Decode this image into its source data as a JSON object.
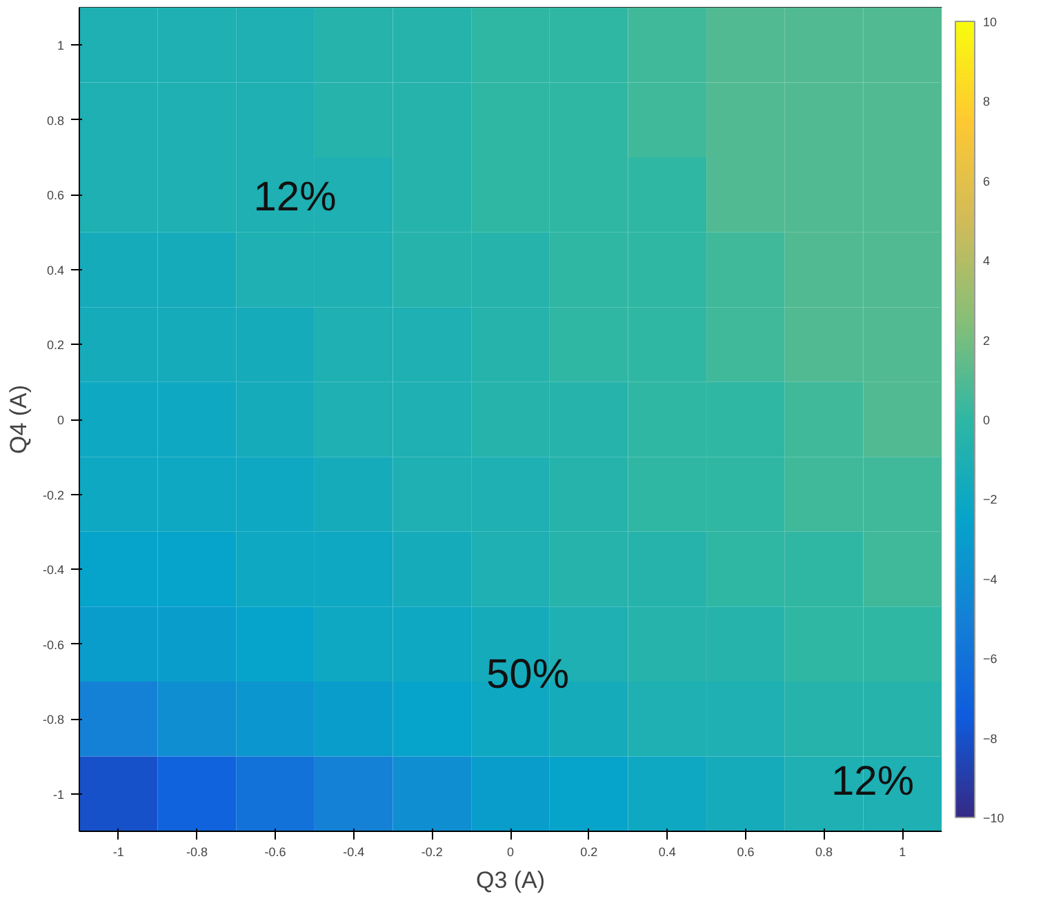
{
  "chart_data": {
    "type": "heatmap",
    "xlabel": "Q3 (A)",
    "ylabel": "Q4 (A)",
    "categories": [
      "-1",
      "-0.8",
      "-0.6",
      "-0.4",
      "-0.2",
      "0",
      "0.2",
      "0.4",
      "0.6",
      "0.8",
      "1"
    ],
    "y_categories": [
      "1",
      "0.8",
      "0.6",
      "0.4",
      "0.2",
      "0",
      "-0.2",
      "-0.4",
      "-0.6",
      "-0.8",
      "-1"
    ],
    "clim": [
      -10,
      10
    ],
    "cticks": [
      -10,
      -8,
      -6,
      -4,
      -2,
      0,
      2,
      4,
      6,
      8,
      10
    ],
    "cells": [
      [
        -1,
        -1,
        -1,
        -0.5,
        -0.5,
        0,
        0,
        0.5,
        1,
        1,
        1
      ],
      [
        -1,
        -1,
        -1,
        -0.5,
        -0.5,
        0,
        0,
        0.5,
        1,
        1,
        1
      ],
      [
        -1,
        -1,
        -1,
        -1,
        -0.5,
        0,
        0,
        0,
        1,
        1,
        1
      ],
      [
        -1.5,
        -1.5,
        -1,
        -1,
        -0.5,
        -0.5,
        0,
        0,
        0.5,
        1,
        1
      ],
      [
        -1.5,
        -1.5,
        -1.5,
        -1,
        -1,
        -0.5,
        0,
        0,
        0.5,
        1,
        1
      ],
      [
        -2,
        -2,
        -1.5,
        -1,
        -1,
        -0.5,
        -0.5,
        0,
        0,
        0.5,
        1
      ],
      [
        -2,
        -2,
        -2,
        -1.5,
        -1,
        -1,
        -0.5,
        0,
        0,
        0.5,
        0.5
      ],
      [
        -2.5,
        -2.5,
        -2,
        -2,
        -1.5,
        -1,
        -0.5,
        -0.5,
        0,
        0,
        0.5
      ],
      [
        -3,
        -3,
        -2.5,
        -2,
        -2,
        -1.5,
        -1,
        -0.5,
        -0.5,
        0,
        0
      ],
      [
        -5,
        -4,
        -3.5,
        -3,
        -2.5,
        -2,
        -1.5,
        -1,
        -1,
        -0.5,
        -0.5
      ],
      [
        -8,
        -7,
        -6,
        -5,
        -4,
        -3,
        -2.5,
        -2,
        -1.5,
        -1,
        -1
      ]
    ],
    "annotations": [
      "12%",
      "50%",
      "12%"
    ]
  }
}
